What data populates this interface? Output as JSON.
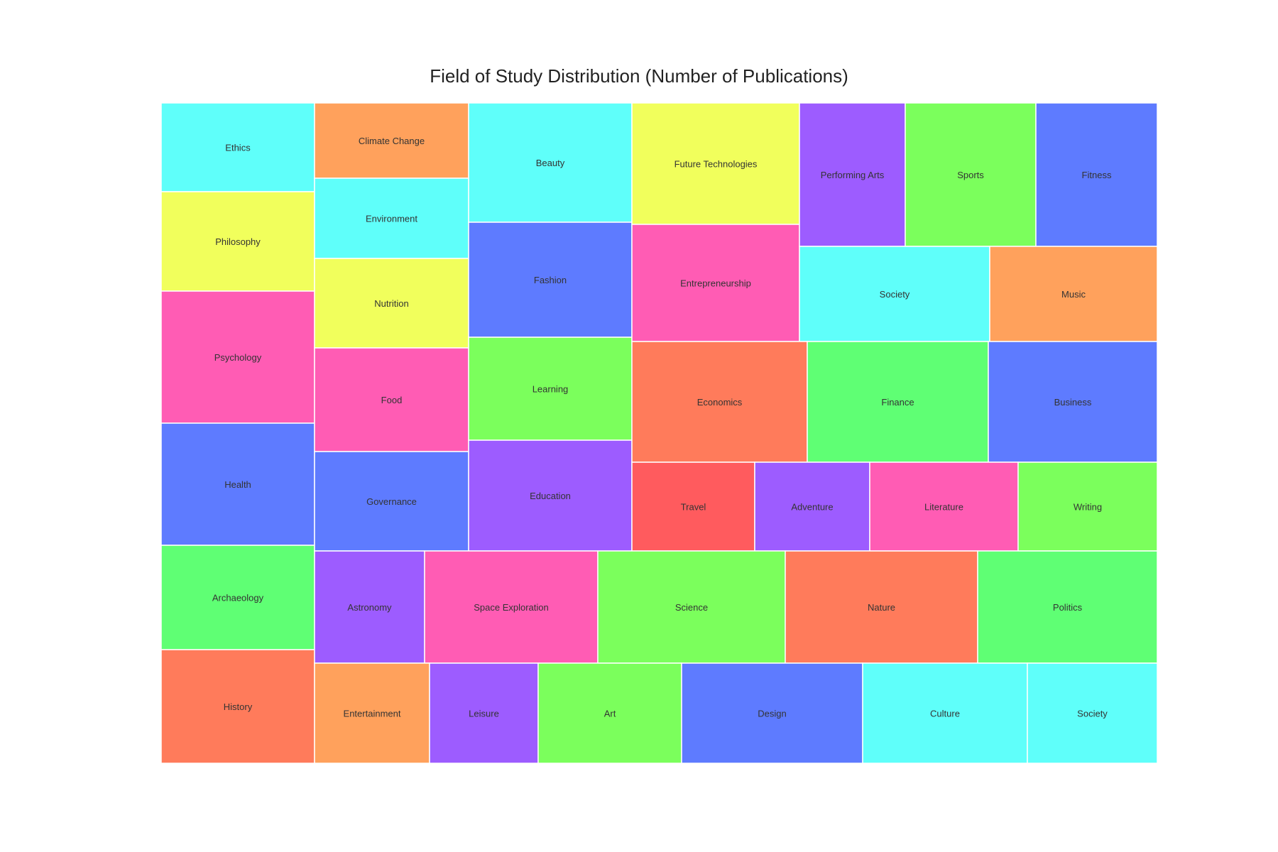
{
  "chart_data": {
    "type": "treemap",
    "title": "Field of Study Distribution (Number of Publications)",
    "tiles": [
      {
        "label": "Ethics",
        "color": "#5ffffa"
      },
      {
        "label": "Philosophy",
        "color": "#f1ff5c"
      },
      {
        "label": "Psychology",
        "color": "#ff5cb4"
      },
      {
        "label": "Health",
        "color": "#5e7bff"
      },
      {
        "label": "Archaeology",
        "color": "#5fff74"
      },
      {
        "label": "History",
        "color": "#ff7b5b"
      },
      {
        "label": "Climate Change",
        "color": "#ffa15c"
      },
      {
        "label": "Environment",
        "color": "#5ffffa"
      },
      {
        "label": "Nutrition",
        "color": "#f1ff5c"
      },
      {
        "label": "Food",
        "color": "#ff5cb4"
      },
      {
        "label": "Governance",
        "color": "#5e7bff"
      },
      {
        "label": "Beauty",
        "color": "#5ffffa"
      },
      {
        "label": "Fashion",
        "color": "#5e7bff"
      },
      {
        "label": "Learning",
        "color": "#7bff5c"
      },
      {
        "label": "Education",
        "color": "#9d5cff"
      },
      {
        "label": "Future Technologies",
        "color": "#f1ff5c"
      },
      {
        "label": "Entrepreneurship",
        "color": "#ff5cb4"
      },
      {
        "label": "Performing Arts",
        "color": "#9d5cff"
      },
      {
        "label": "Sports",
        "color": "#7bff5c"
      },
      {
        "label": "Fitness",
        "color": "#5e7bff"
      },
      {
        "label": "Society",
        "color": "#5ffffa"
      },
      {
        "label": "Music",
        "color": "#ffa15c"
      },
      {
        "label": "Economics",
        "color": "#ff7b5b"
      },
      {
        "label": "Finance",
        "color": "#5fff74"
      },
      {
        "label": "Business",
        "color": "#5e7bff"
      },
      {
        "label": "Travel",
        "color": "#ff5b5e"
      },
      {
        "label": "Adventure",
        "color": "#9d5cff"
      },
      {
        "label": "Literature",
        "color": "#ff5cb4"
      },
      {
        "label": "Writing",
        "color": "#7bff5c"
      },
      {
        "label": "Astronomy",
        "color": "#9d5cff"
      },
      {
        "label": "Space Exploration",
        "color": "#ff5cb4"
      },
      {
        "label": "Science",
        "color": "#7bff5c"
      },
      {
        "label": "Nature",
        "color": "#ff7b5b"
      },
      {
        "label": "Politics",
        "color": "#5fff74"
      },
      {
        "label": "Entertainment",
        "color": "#ffa15c"
      },
      {
        "label": "Leisure",
        "color": "#9d5cff"
      },
      {
        "label": "Art",
        "color": "#7bff5c"
      },
      {
        "label": "Design",
        "color": "#5e7bff"
      },
      {
        "label": "Culture",
        "color": "#5ffffa"
      },
      {
        "label": "Society",
        "color": "#5ffffa"
      }
    ]
  }
}
